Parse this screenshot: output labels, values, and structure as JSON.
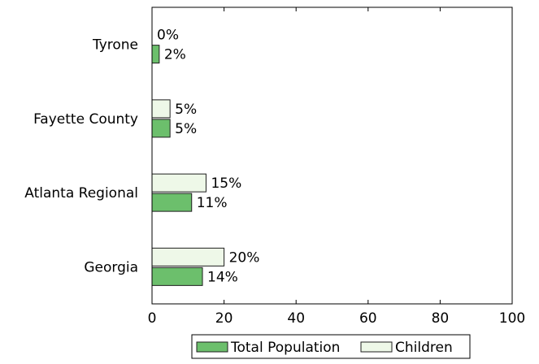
{
  "chart_data": {
    "type": "bar",
    "orientation": "horizontal",
    "categories": [
      "Tyrone",
      "Fayette County",
      "Atlanta Regional",
      "Georgia"
    ],
    "series": [
      {
        "name": "Children",
        "values": [
          0,
          5,
          15,
          20
        ],
        "labels": [
          "0%",
          "5%",
          "15%",
          "20%"
        ],
        "color": "#eef8e8"
      },
      {
        "name": "Total Population",
        "values": [
          2,
          5,
          11,
          14
        ],
        "labels": [
          "2%",
          "5%",
          "11%",
          "14%"
        ],
        "color": "#6cbf6c"
      }
    ],
    "xlim": [
      0,
      100
    ],
    "xticks": [
      0,
      20,
      40,
      60,
      80,
      100
    ],
    "xtick_labels": [
      "0",
      "20",
      "40",
      "60",
      "80",
      "100"
    ],
    "legend": {
      "position": "bottom",
      "entries": [
        {
          "label": "Total Population",
          "color": "#6cbf6c"
        },
        {
          "label": "Children",
          "color": "#eef8e8"
        }
      ]
    },
    "grid": false,
    "title": "",
    "xlabel": "",
    "ylabel": ""
  }
}
